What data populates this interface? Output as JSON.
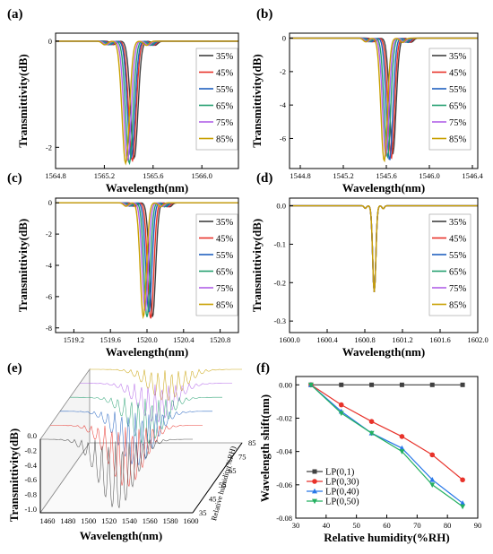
{
  "colors": {
    "c35": "#404040",
    "c45": "#e8322a",
    "c55": "#2060c0",
    "c65": "#24a070",
    "c75": "#b060e8",
    "c85": "#c8a000",
    "lp01": "#404040",
    "lp030": "#e8322a",
    "lp040": "#2878e8",
    "lp050": "#24b060"
  },
  "chart_data": [
    {
      "panel": "(a)",
      "type": "line",
      "xlabel": "Wavelength(nm)",
      "ylabel": "Transmittivity(dB)",
      "xlim": [
        1564.8,
        1566.3
      ],
      "ylim": [
        -2.4,
        0.15
      ],
      "xticks": [
        "1564.8",
        "1565.2",
        "1565.6",
        "1566.0"
      ],
      "xtickvals": [
        1564.8,
        1565.2,
        1565.6,
        1566.0
      ],
      "yticks": [
        "0",
        "-2"
      ],
      "ytickvals": [
        0,
        -2
      ],
      "legend_position": "right",
      "series": [
        {
          "name": "35%",
          "color": "#404040",
          "center": 1565.445,
          "depth": -2.2
        },
        {
          "name": "45%",
          "color": "#e8322a",
          "center": 1565.43,
          "depth": -2.25
        },
        {
          "name": "55%",
          "color": "#2060c0",
          "center": 1565.42,
          "depth": -2.2
        },
        {
          "name": "65%",
          "color": "#24a070",
          "center": 1565.405,
          "depth": -2.3
        },
        {
          "name": "75%",
          "color": "#b060e8",
          "center": 1565.39,
          "depth": -2.25
        },
        {
          "name": "85%",
          "color": "#c8a000",
          "center": 1565.375,
          "depth": -2.3
        }
      ],
      "width": 0.09
    },
    {
      "panel": "(b)",
      "type": "line",
      "xlabel": "Wavelength(nm)",
      "ylabel": "Transmittivity(dB)",
      "xlim": [
        1544.7,
        1546.45
      ],
      "ylim": [
        -7.8,
        0.3
      ],
      "xticks": [
        "1544.8",
        "1545.2",
        "1545.6",
        "1546.0",
        "1546.4"
      ],
      "xtickvals": [
        1544.8,
        1545.2,
        1545.6,
        1546.0,
        1546.4
      ],
      "yticks": [
        "0",
        "-2",
        "-4",
        "-6"
      ],
      "ytickvals": [
        0,
        -2,
        -4,
        -6
      ],
      "legend_position": "right",
      "series": [
        {
          "name": "35%",
          "color": "#404040",
          "center": 1545.66,
          "depth": -6.9
        },
        {
          "name": "45%",
          "color": "#e8322a",
          "center": 1545.645,
          "depth": -7.2
        },
        {
          "name": "55%",
          "color": "#2060c0",
          "center": 1545.63,
          "depth": -7.3
        },
        {
          "name": "65%",
          "color": "#24a070",
          "center": 1545.61,
          "depth": -7.1
        },
        {
          "name": "75%",
          "color": "#b060e8",
          "center": 1545.595,
          "depth": -7.0
        },
        {
          "name": "85%",
          "color": "#c8a000",
          "center": 1545.58,
          "depth": -7.35
        }
      ],
      "width": 0.09
    },
    {
      "panel": "(c)",
      "type": "line",
      "xlabel": "Wavelength(nm)",
      "ylabel": "Transmittivity(dB)",
      "xlim": [
        1519.0,
        1521.0
      ],
      "ylim": [
        -8.3,
        0.3
      ],
      "xticks": [
        "1519.2",
        "1519.6",
        "1520.0",
        "1520.4",
        "1520.8"
      ],
      "xtickvals": [
        1519.2,
        1519.6,
        1520.0,
        1520.4,
        1520.8
      ],
      "yticks": [
        "0",
        "-2",
        "-4",
        "-6",
        "-8"
      ],
      "ytickvals": [
        0,
        -2,
        -4,
        -6,
        -8
      ],
      "legend_position": "right",
      "series": [
        {
          "name": "35%",
          "color": "#404040",
          "center": 1520.06,
          "depth": -7.3
        },
        {
          "name": "45%",
          "color": "#e8322a",
          "center": 1520.04,
          "depth": -7.4
        },
        {
          "name": "55%",
          "color": "#2060c0",
          "center": 1520.02,
          "depth": -7.0
        },
        {
          "name": "65%",
          "color": "#24a070",
          "center": 1520.0,
          "depth": -7.3
        },
        {
          "name": "75%",
          "color": "#b060e8",
          "center": 1519.98,
          "depth": -6.9
        },
        {
          "name": "85%",
          "color": "#c8a000",
          "center": 1519.96,
          "depth": -7.3
        }
      ],
      "width": 0.1
    },
    {
      "panel": "(d)",
      "type": "line",
      "xlabel": "Wavelength(nm)",
      "ylabel": "Transmittivity(dB)",
      "xlim": [
        1600.0,
        1602.0
      ],
      "ylim": [
        -0.33,
        0.02
      ],
      "xticks": [
        "1600.0",
        "1600.4",
        "1600.8",
        "1601.2",
        "1601.6",
        "1602.0"
      ],
      "xtickvals": [
        1600.0,
        1600.4,
        1600.8,
        1601.2,
        1601.6,
        1602.0
      ],
      "yticks": [
        "0.0",
        "-0.1",
        "-0.2",
        "-0.3"
      ],
      "ytickvals": [
        0,
        -0.1,
        -0.2,
        -0.3
      ],
      "legend_position": "right",
      "series": [
        {
          "name": "35%",
          "color": "#404040",
          "center": 1600.9,
          "depth": -0.225
        },
        {
          "name": "45%",
          "color": "#e8322a",
          "center": 1600.9,
          "depth": -0.225
        },
        {
          "name": "55%",
          "color": "#2060c0",
          "center": 1600.9,
          "depth": -0.225
        },
        {
          "name": "65%",
          "color": "#24a070",
          "center": 1600.9,
          "depth": -0.225
        },
        {
          "name": "75%",
          "color": "#b060e8",
          "center": 1600.9,
          "depth": -0.225
        },
        {
          "name": "85%",
          "color": "#c8a000",
          "center": 1600.9,
          "depth": -0.225
        }
      ],
      "width": 0.05
    },
    {
      "panel": "(e)",
      "type": "line",
      "view": "3d-waterfall",
      "xlabel": "Wavelength(nm)",
      "ylabel": "Transmittivity(dB)",
      "zlabel": "Relative humidity(%RH)",
      "xticks": [
        "1460",
        "1480",
        "1500",
        "1520",
        "1540",
        "1560",
        "1580",
        "1600"
      ],
      "yticks": [
        "0.0",
        "-0.2",
        "-0.4",
        "-0.6",
        "-0.8",
        "-1.0"
      ],
      "zticks": [
        "85",
        "75",
        "65",
        "55",
        "45",
        "35"
      ],
      "series_names": [
        "35",
        "45",
        "55",
        "65",
        "75",
        "85"
      ]
    },
    {
      "panel": "(f)",
      "type": "line",
      "xlabel": "Relative humidity(%RH)",
      "ylabel": "Wavelength shift(nm)",
      "xlim": [
        30,
        90
      ],
      "ylim": [
        -0.08,
        0.005
      ],
      "xticks": [
        "30",
        "40",
        "50",
        "60",
        "70",
        "80",
        "90"
      ],
      "xtickvals": [
        30,
        40,
        50,
        60,
        70,
        80,
        90
      ],
      "yticks": [
        "0.00",
        "-0.02",
        "-0.04",
        "-0.06",
        "-0.08"
      ],
      "ytickvals": [
        0,
        -0.02,
        -0.04,
        -0.06,
        -0.08
      ],
      "legend_position": "bottom-left",
      "x": [
        35,
        45,
        55,
        65,
        75,
        85
      ],
      "series": [
        {
          "name": "LP(0,1)",
          "color": "#404040",
          "marker": "square",
          "values": [
            0,
            0,
            0,
            0,
            0,
            0
          ]
        },
        {
          "name": "LP(0,30)",
          "color": "#e8322a",
          "marker": "circle",
          "values": [
            0,
            -0.012,
            -0.022,
            -0.031,
            -0.042,
            -0.057
          ]
        },
        {
          "name": "LP(0,40)",
          "color": "#2878e8",
          "marker": "triangle-up",
          "values": [
            0,
            -0.016,
            -0.029,
            -0.038,
            -0.057,
            -0.071
          ]
        },
        {
          "name": "LP(0,50)",
          "color": "#24b060",
          "marker": "triangle-down",
          "values": [
            0,
            -0.017,
            -0.029,
            -0.04,
            -0.06,
            -0.073
          ]
        }
      ]
    }
  ]
}
